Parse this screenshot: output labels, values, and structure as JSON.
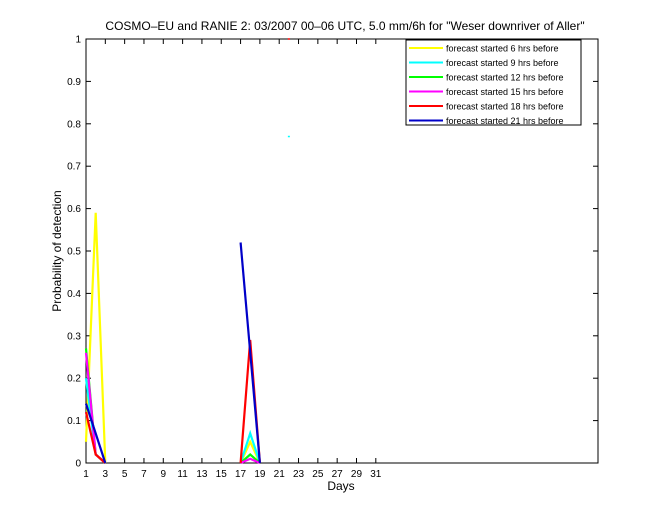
{
  "chart_data": {
    "type": "line",
    "title": "COSMO–EU and RANIE 2: 03/2007 00–06 UTC, 5.0 mm/6h for \"Weser downriver of Aller\"",
    "xlabel": "Days",
    "ylabel": "Probability of detection",
    "xlim": [
      1,
      54
    ],
    "ylim": [
      0,
      1
    ],
    "xticks": [
      1,
      3,
      5,
      7,
      9,
      11,
      13,
      15,
      17,
      19,
      21,
      23,
      25,
      27,
      29,
      31
    ],
    "yticks": [
      0,
      0.1,
      0.2,
      0.3,
      0.4,
      0.5,
      0.6,
      0.7,
      0.8,
      0.9,
      1
    ],
    "ytick_labels": [
      "0",
      "0.1",
      "0.2",
      "0.3",
      "0.4",
      "0.5",
      "0.6",
      "0.7",
      "0.8",
      "0.9",
      "1"
    ],
    "grid": false,
    "legend_position": "top-right",
    "series": [
      {
        "name": "forecast started 6 hrs before",
        "color": "#ffff00",
        "segments": [
          [
            [
              1,
              0.05
            ],
            [
              2,
              0.59
            ],
            [
              3,
              0
            ]
          ],
          [
            [
              17,
              0
            ],
            [
              18,
              0.05
            ],
            [
              19,
              0
            ]
          ]
        ],
        "dots": []
      },
      {
        "name": "forecast started 9 hrs before",
        "color": "#00ffff",
        "segments": [
          [
            [
              1,
              0.2
            ],
            [
              2,
              0.02
            ],
            [
              3,
              0
            ]
          ],
          [
            [
              17,
              0
            ],
            [
              18,
              0.07
            ],
            [
              19,
              0
            ]
          ]
        ],
        "dots": [
          [
            22,
            0.77
          ]
        ]
      },
      {
        "name": "forecast started 12 hrs before",
        "color": "#00ff00",
        "segments": [
          [
            [
              1,
              0.27
            ],
            [
              2,
              0.02
            ],
            [
              3,
              0
            ]
          ],
          [
            [
              17,
              0
            ],
            [
              18,
              0.02
            ],
            [
              19,
              0
            ]
          ]
        ],
        "dots": []
      },
      {
        "name": "forecast started 15 hrs before",
        "color": "#ff00ff",
        "segments": [
          [
            [
              1,
              0.26
            ],
            [
              2,
              0.02
            ],
            [
              3,
              0
            ]
          ],
          [
            [
              17,
              0
            ],
            [
              18,
              0.01
            ],
            [
              19,
              0
            ]
          ]
        ],
        "dots": []
      },
      {
        "name": "forecast started 18 hrs before",
        "color": "#ff0000",
        "segments": [
          [
            [
              1,
              0.12
            ],
            [
              2,
              0.02
            ],
            [
              3,
              0
            ]
          ],
          [
            [
              17,
              0
            ],
            [
              18,
              0.29
            ],
            [
              19,
              0
            ]
          ]
        ],
        "dots": [
          [
            22,
            1.0
          ]
        ]
      },
      {
        "name": "forecast started 21 hrs before",
        "color": "#0000c8",
        "segments": [
          [
            [
              1,
              0.14
            ],
            [
              3,
              0
            ]
          ],
          [
            [
              17,
              0.52
            ],
            [
              19,
              0
            ]
          ]
        ],
        "dots": []
      }
    ]
  }
}
